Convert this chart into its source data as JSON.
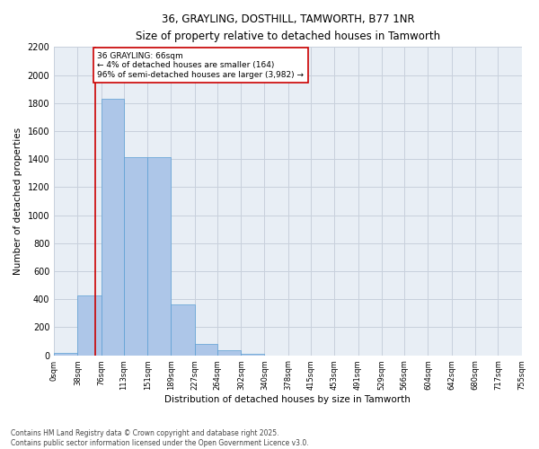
{
  "title": "36, GRAYLING, DOSTHILL, TAMWORTH, B77 1NR",
  "subtitle": "Size of property relative to detached houses in Tamworth",
  "xlabel": "Distribution of detached houses by size in Tamworth",
  "ylabel": "Number of detached properties",
  "footer_line1": "Contains HM Land Registry data © Crown copyright and database right 2025.",
  "footer_line2": "Contains public sector information licensed under the Open Government Licence v3.0.",
  "annotation_title": "36 GRAYLING: 66sqm",
  "annotation_line1": "← 4% of detached houses are smaller (164)",
  "annotation_line2": "96% of semi-detached houses are larger (3,982) →",
  "property_line_x": 66,
  "bar_edges": [
    0,
    38,
    76,
    113,
    151,
    189,
    227,
    264,
    302,
    340,
    378,
    415,
    453,
    491,
    529,
    566,
    604,
    642,
    680,
    717,
    755
  ],
  "bar_heights": [
    15,
    425,
    1830,
    1415,
    1415,
    360,
    80,
    35,
    10,
    0,
    0,
    0,
    0,
    0,
    0,
    0,
    0,
    0,
    0,
    0
  ],
  "bar_color": "#adc6e8",
  "bar_edgecolor": "#5a9fd4",
  "grid_color": "#c8d0dc",
  "bg_color": "#e8eef5",
  "vline_color": "#cc0000",
  "annotation_box_color": "#cc0000",
  "ylim": [
    0,
    2200
  ],
  "yticks": [
    0,
    200,
    400,
    600,
    800,
    1000,
    1200,
    1400,
    1600,
    1800,
    2000,
    2200
  ],
  "tick_labels": [
    "0sqm",
    "38sqm",
    "76sqm",
    "113sqm",
    "151sqm",
    "189sqm",
    "227sqm",
    "264sqm",
    "302sqm",
    "340sqm",
    "378sqm",
    "415sqm",
    "453sqm",
    "491sqm",
    "529sqm",
    "566sqm",
    "604sqm",
    "642sqm",
    "680sqm",
    "717sqm",
    "755sqm"
  ]
}
